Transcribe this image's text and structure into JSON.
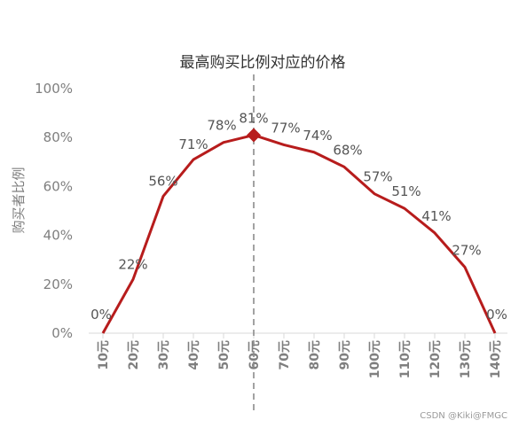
{
  "chart_data": {
    "type": "line",
    "title": "最高购买比例对应的价格",
    "xlabel": "",
    "ylabel": "购买者比例",
    "categories": [
      "10元",
      "20元",
      "30元",
      "40元",
      "50元",
      "60元",
      "70元",
      "80元",
      "90元",
      "100元",
      "110元",
      "120元",
      "130元",
      "140元"
    ],
    "series": [
      {
        "values": [
          0,
          22,
          56,
          71,
          78,
          81,
          77,
          74,
          68,
          57,
          51,
          41,
          27,
          0
        ],
        "labels": [
          "0%",
          "22%",
          "56%",
          "71%",
          "78%",
          "81%",
          "77%",
          "74%",
          "68%",
          "57%",
          "51%",
          "41%",
          "27%",
          "0%"
        ]
      }
    ],
    "yticks": [
      "0%",
      "20%",
      "40%",
      "60%",
      "80%",
      "100%"
    ],
    "ylim": [
      0,
      100
    ],
    "max_marker_category": "60元",
    "line_color": "#b71c1c",
    "grid": false
  },
  "watermark": "CSDN @Kiki@FMGC"
}
